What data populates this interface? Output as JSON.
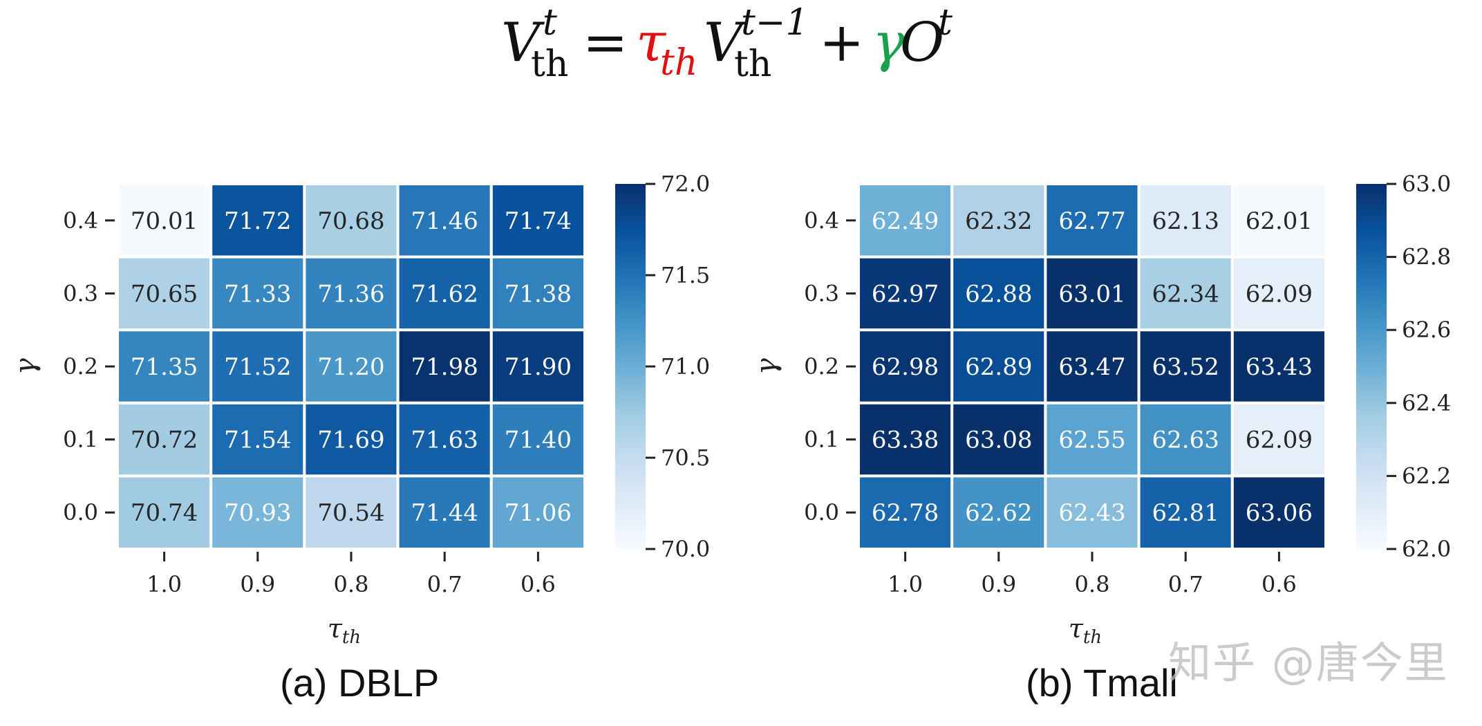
{
  "formula": {
    "lhs_var": "V",
    "lhs_sup": "t",
    "lhs_sub": "th",
    "eq": "=",
    "tau": "τ",
    "tau_sub": "th",
    "v2": "V",
    "v2_sup": "t−1",
    "v2_sub": "th",
    "plus": "+",
    "gamma": "γ",
    "o": "O",
    "o_sup": "t",
    "colors": {
      "tau": "#e01010",
      "gamma": "#17a24a",
      "text": "#111111"
    }
  },
  "watermark": "知乎 @唐今里",
  "chart_data": [
    {
      "type": "heatmap",
      "caption": "(a) DBLP",
      "xlabel": "τ",
      "xlabel_sub": "th",
      "ylabel": "γ",
      "x": [
        "1.0",
        "0.9",
        "0.8",
        "0.7",
        "0.6"
      ],
      "y": [
        "0.4",
        "0.3",
        "0.2",
        "0.1",
        "0.0"
      ],
      "values": [
        [
          70.01,
          71.72,
          70.68,
          71.46,
          71.74
        ],
        [
          70.65,
          71.33,
          71.36,
          71.62,
          71.38
        ],
        [
          71.35,
          71.52,
          71.2,
          71.98,
          71.9
        ],
        [
          70.72,
          71.54,
          71.69,
          71.63,
          71.4
        ],
        [
          70.74,
          70.93,
          70.54,
          71.44,
          71.06
        ]
      ],
      "vmin": 70.0,
      "vmax": 72.0,
      "colorbar_ticks": [
        "70.0",
        "70.5",
        "71.0",
        "71.5",
        "72.0"
      ],
      "colormap": "Blues",
      "decimals": 2
    },
    {
      "type": "heatmap",
      "caption": "(b) Tmall",
      "xlabel": "τ",
      "xlabel_sub": "th",
      "ylabel": "γ",
      "x": [
        "1.0",
        "0.9",
        "0.8",
        "0.7",
        "0.6"
      ],
      "y": [
        "0.4",
        "0.3",
        "0.2",
        "0.1",
        "0.0"
      ],
      "values": [
        [
          62.49,
          62.32,
          62.77,
          62.13,
          62.01
        ],
        [
          62.97,
          62.88,
          63.01,
          62.34,
          62.09
        ],
        [
          62.98,
          62.89,
          63.47,
          63.52,
          63.43
        ],
        [
          63.38,
          63.08,
          62.55,
          62.63,
          62.09
        ],
        [
          62.78,
          62.62,
          62.43,
          62.81,
          63.06
        ]
      ],
      "vmin": 62.0,
      "vmax": 63.0,
      "colorbar_ticks": [
        "62.0",
        "62.2",
        "62.4",
        "62.6",
        "62.8",
        "63.0"
      ],
      "colormap": "Blues",
      "decimals": 2
    }
  ]
}
